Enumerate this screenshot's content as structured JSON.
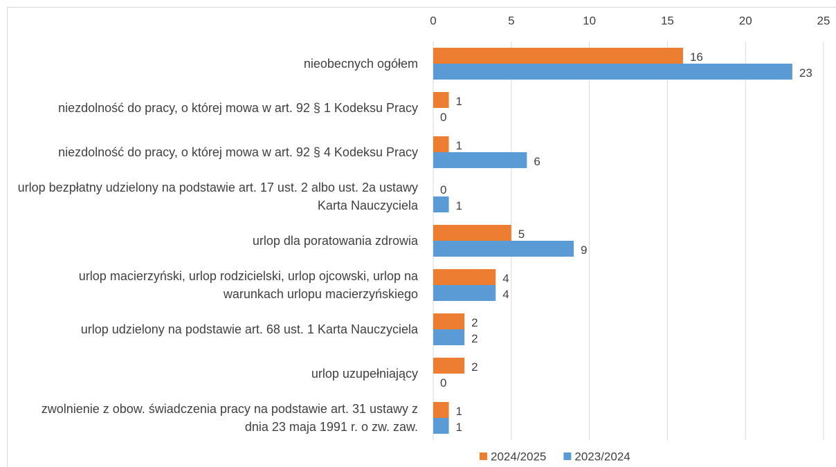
{
  "chart_data": {
    "type": "barh",
    "categories": [
      "nieobecnych ogółem",
      "niezdolność do pracy, o której mowa w art. 92 § 1 Kodeksu Pracy",
      "niezdolność do pracy, o której mowa w art. 92 § 4 Kodeksu Pracy",
      "urlop bezpłatny udzielony na podstawie art. 17 ust. 2 albo ust. 2a ustawy Karta Nauczyciela",
      "urlop dla poratowania zdrowia",
      "urlop macierzyński, urlop rodzicielski, urlop ojcowski, urlop na warunkach urlopu macierzyńskiego",
      "urlop udzielony na podstawie art. 68 ust. 1 Karta Nauczyciela",
      "urlop uzupełniający",
      "zwolnienie z obow. świadczenia pracy na podstawie art. 31 ustawy z dnia 23 maja 1991 r. o zw. zaw."
    ],
    "series": [
      {
        "name": "2024/2025",
        "color": "#ed7d31",
        "values": [
          16,
          1,
          1,
          0,
          5,
          4,
          2,
          2,
          1
        ]
      },
      {
        "name": "2023/2024",
        "color": "#5b9bd5",
        "values": [
          23,
          0,
          6,
          1,
          9,
          4,
          2,
          0,
          1
        ]
      }
    ],
    "xlim": [
      0,
      25
    ],
    "xticks": [
      0,
      5,
      10,
      15,
      20,
      25
    ],
    "grid": true,
    "legend": "bottom"
  }
}
